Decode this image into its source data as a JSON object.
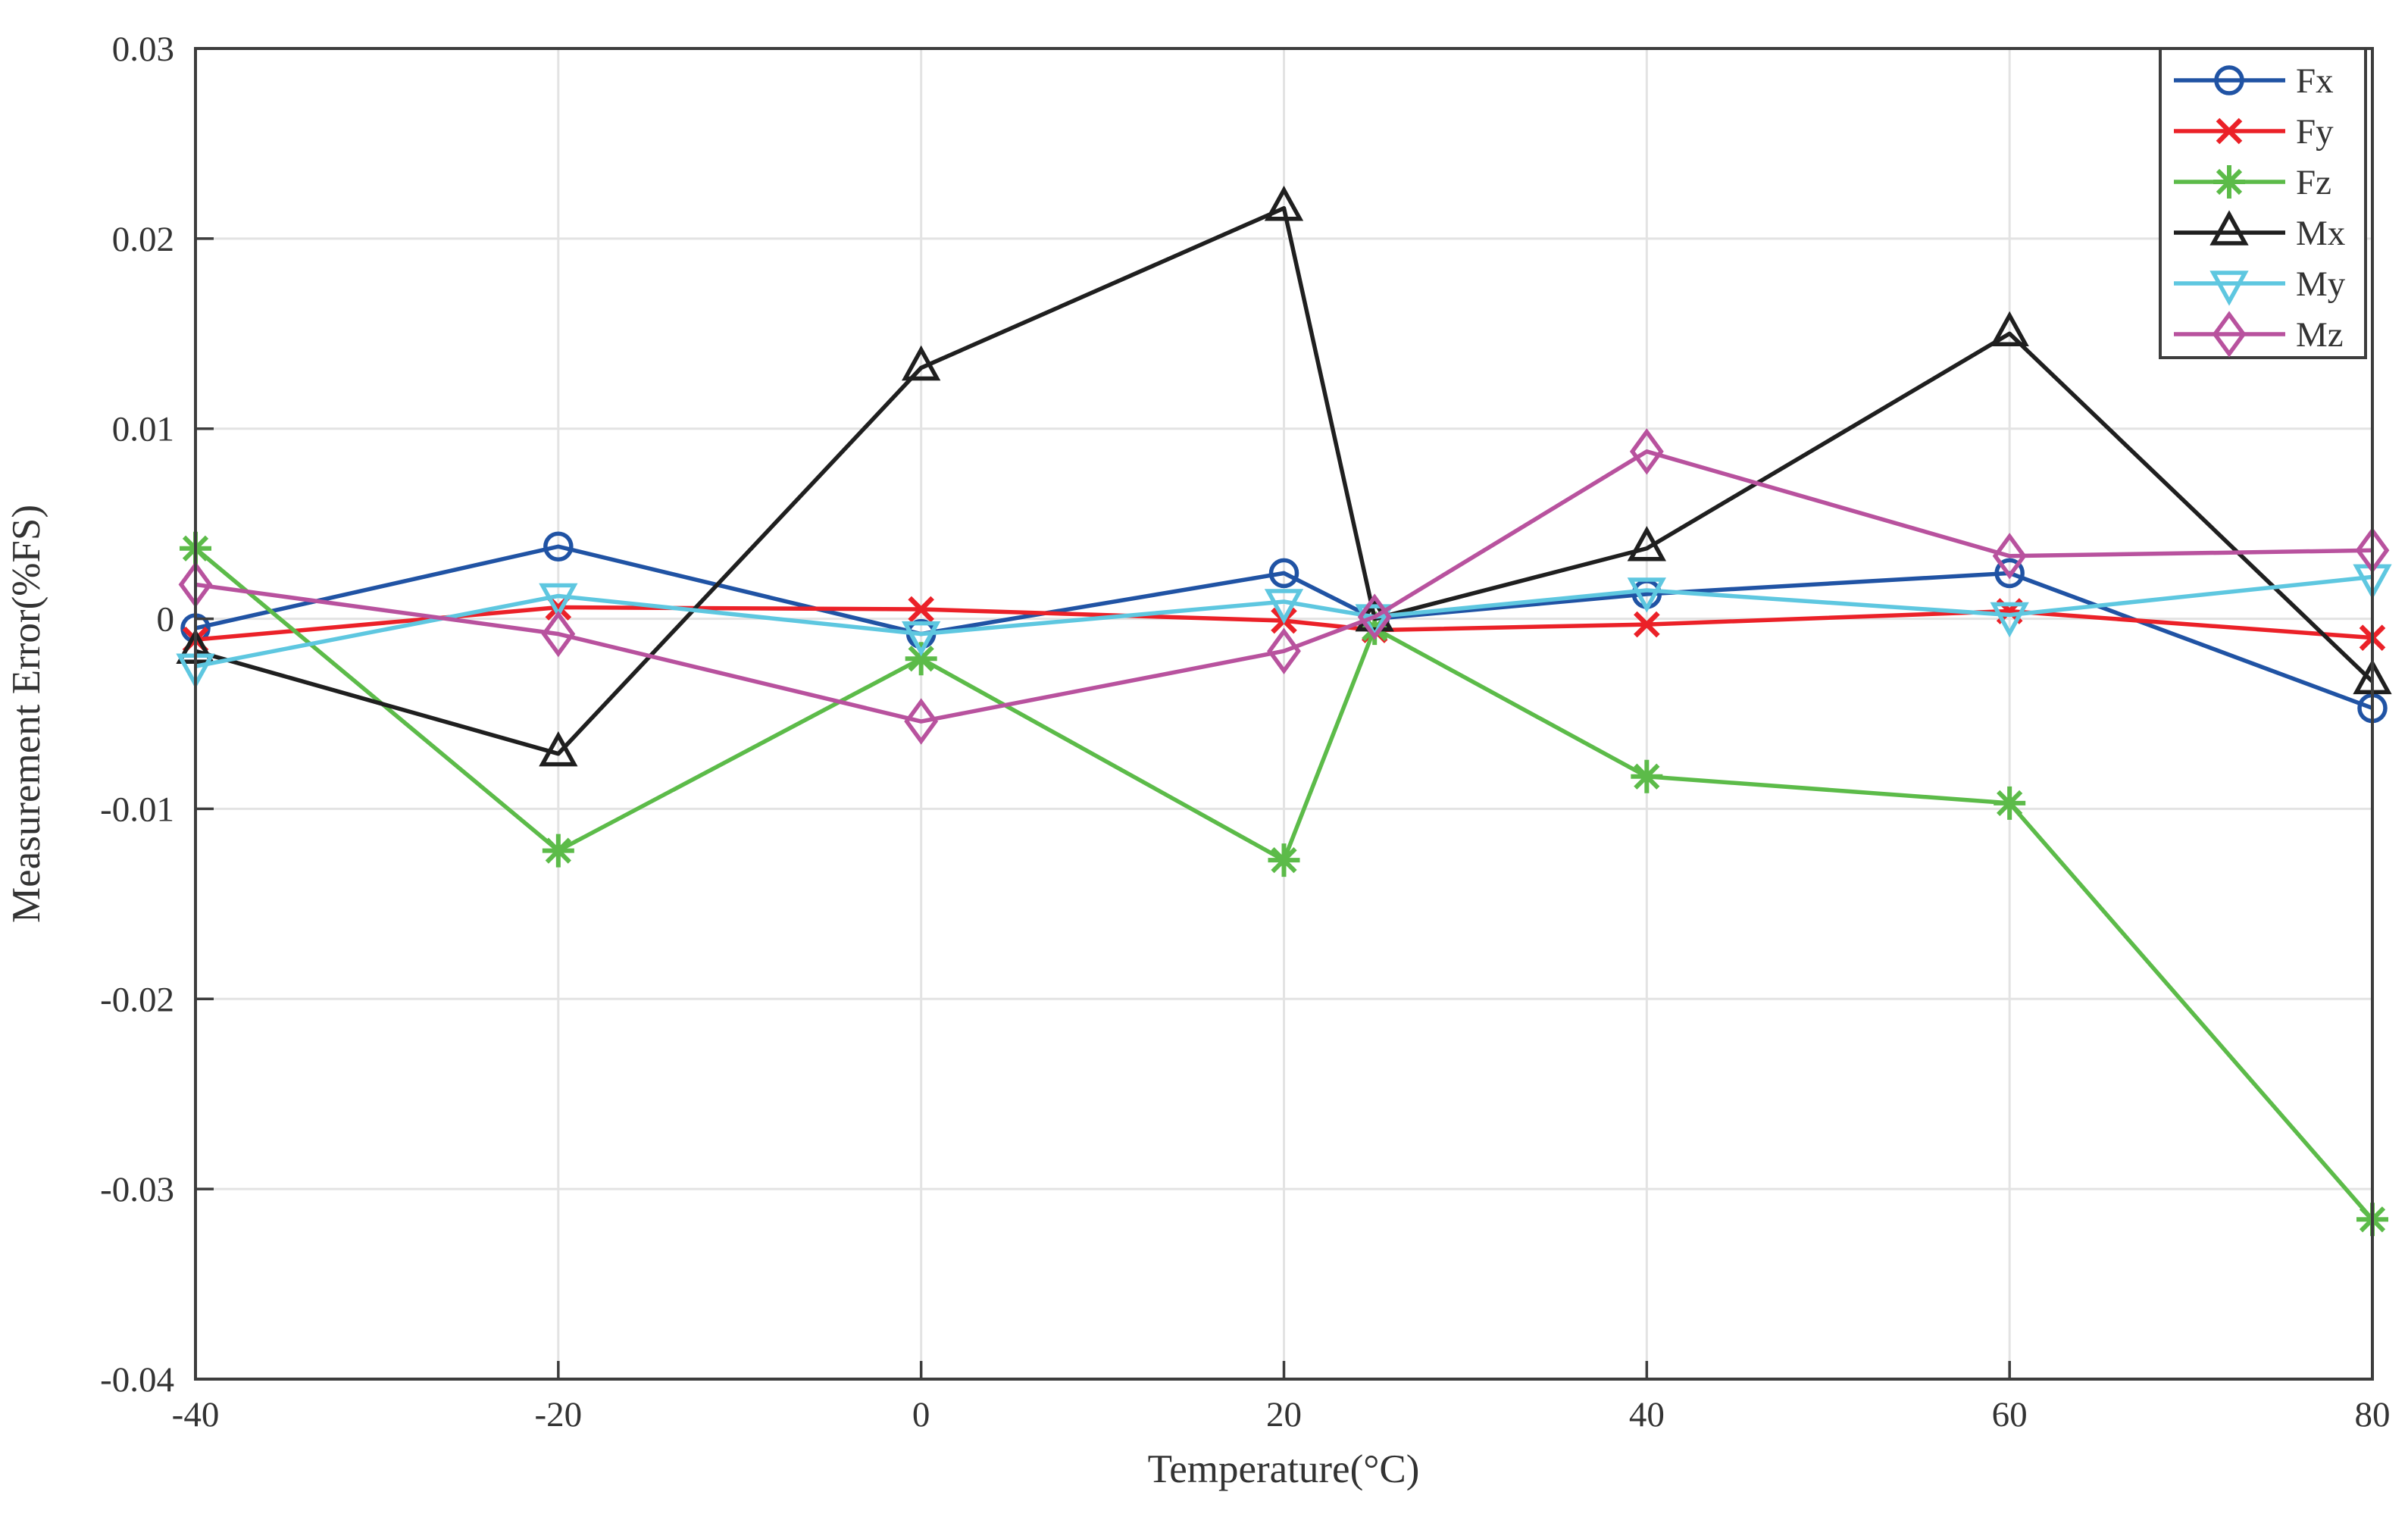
{
  "figure": {
    "background": "#FFFFFF",
    "frame_color": "#3D3D3D",
    "grid_color": "#E3E3E3",
    "text_color": "#333333"
  },
  "chart_data": {
    "type": "line",
    "title": "",
    "xlabel": "Temperature(°C)",
    "ylabel": "Measurement Error(%FS)",
    "xlim": [
      -40,
      80
    ],
    "ylim": [
      -0.04,
      0.03
    ],
    "grid": true,
    "legend_position": "top-right",
    "xticks": {
      "values": [
        -40,
        -20,
        0,
        20,
        40,
        60,
        80
      ],
      "labels": [
        "-40",
        "-20",
        "0",
        "20",
        "40",
        "60",
        "80"
      ]
    },
    "yticks": {
      "values": [
        0.03,
        0.02,
        0.01,
        0,
        -0.01,
        -0.02,
        -0.03,
        -0.04
      ],
      "labels": [
        "0.03",
        "0.02",
        "0.01",
        "0",
        "-0.01",
        "-0.02",
        "-0.03",
        "-0.04"
      ]
    },
    "x": [
      -40,
      -20,
      0,
      20,
      25,
      40,
      60,
      80
    ],
    "series": [
      {
        "name": "Fx",
        "color": "#2053A4",
        "marker": "circle",
        "values": [
          -0.0005,
          0.0038,
          -0.0008,
          0.0024,
          0.0,
          0.0013,
          0.0024,
          -0.0047
        ]
      },
      {
        "name": "Fy",
        "color": "#EB2128",
        "marker": "x-cross",
        "values": [
          -0.0011,
          0.0006,
          0.0005,
          -0.0001,
          -0.0006,
          -0.0003,
          0.0004,
          -0.001
        ]
      },
      {
        "name": "Fz",
        "color": "#5CBB49",
        "marker": "asterisk",
        "values": [
          0.0037,
          -0.0122,
          -0.0021,
          -0.0127,
          -0.0005,
          -0.0083,
          -0.0097,
          -0.0316
        ]
      },
      {
        "name": "Mx",
        "color": "#1F1F1F",
        "marker": "triangle-up",
        "values": [
          -0.0017,
          -0.0071,
          0.0132,
          0.0216,
          0.0,
          0.0037,
          0.015,
          -0.0033
        ]
      },
      {
        "name": "My",
        "color": "#5EC7E0",
        "marker": "triangle-down",
        "values": [
          -0.0025,
          0.0012,
          -0.0008,
          0.0009,
          0.0001,
          0.0015,
          0.0002,
          0.0022
        ]
      },
      {
        "name": "Mz",
        "color": "#B8529E",
        "marker": "diamond",
        "values": [
          0.0018,
          -0.0008,
          -0.0054,
          -0.0017,
          0.0001,
          0.0088,
          0.0033,
          0.0036
        ]
      }
    ]
  }
}
